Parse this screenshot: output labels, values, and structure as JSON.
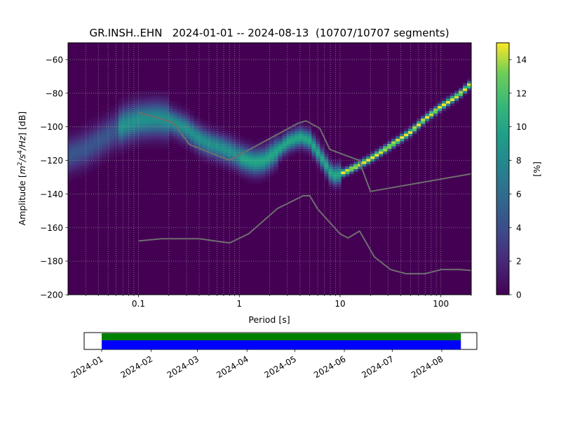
{
  "chart_data": [
    {
      "type": "heatmap",
      "title": "GR.INSH..EHN   2024-01-01 -- 2024-08-13  (10707/10707 segments)",
      "xlabel": "Period [s]",
      "ylabel_prefix": "Amplitude [",
      "ylabel_math": [
        "m",
        "2",
        "/s",
        "4",
        "/Hz"
      ],
      "ylabel_suffix": "] [dB]",
      "x_scale": "log",
      "xlim": [
        0.02,
        200
      ],
      "ylim": [
        -200,
        -50
      ],
      "x_ticks": [
        0.1,
        1,
        10,
        100
      ],
      "x_tick_labels": [
        "0.1",
        "1",
        "10",
        "100"
      ],
      "y_ticks": [
        -200,
        -180,
        -160,
        -140,
        -120,
        -100,
        -80,
        -60
      ],
      "y_tick_labels": [
        "−200",
        "−180",
        "−160",
        "−140",
        "−120",
        "−100",
        "−80",
        "−60"
      ],
      "grid": "dotted",
      "colormap": "viridis",
      "background": "#440154",
      "mode_curve": {
        "period": [
          0.02,
          0.03,
          0.05,
          0.07,
          0.1,
          0.15,
          0.2,
          0.3,
          0.4,
          0.5,
          0.7,
          0.9,
          1.1,
          1.4,
          1.8,
          2.3,
          3,
          4,
          5,
          6,
          7,
          8,
          9,
          10,
          12,
          15,
          20,
          30,
          50,
          70,
          100,
          150,
          200
        ],
        "db": [
          -117,
          -113,
          -105,
          -99,
          -96,
          -95,
          -96,
          -101,
          -107,
          -110,
          -113,
          -116,
          -119,
          -121,
          -120,
          -115,
          -109,
          -106,
          -108,
          -115,
          -121,
          -127,
          -129,
          -128,
          -126,
          -123,
          -119,
          -112,
          -103,
          -95,
          -88,
          -81,
          -74
        ]
      },
      "reference_curves": [
        {
          "period": [
            0.1,
            0.17,
            0.4,
            0.8,
            1.24,
            2.4,
            4.3,
            5.0,
            6.0,
            10.0,
            12.0,
            15.6,
            21.9,
            31.6,
            45.0,
            70.0,
            101.0,
            154.0,
            200.0
          ],
          "db": [
            -168,
            -166.7,
            -166.7,
            -169.2,
            -163.7,
            -148.6,
            -141.1,
            -141.1,
            -149,
            -163.8,
            -166.2,
            -162.1,
            -177.5,
            -185.0,
            -187.5,
            -187.5,
            -185.0,
            -185.0,
            -185.6
          ]
        },
        {
          "period": [
            0.1,
            0.22,
            0.32,
            0.8,
            3.8,
            4.6,
            6.3,
            7.9,
            15.4,
            20.0,
            200.0
          ],
          "db": [
            -91.5,
            -97.4,
            -110.5,
            -120.0,
            -98.0,
            -96.5,
            -101.0,
            -113.5,
            -120.0,
            -138.5,
            -128.0
          ]
        }
      ],
      "colorbar": {
        "label": "[%]",
        "range": [
          0,
          15
        ],
        "ticks": [
          0,
          2,
          4,
          6,
          8,
          10,
          12,
          14
        ],
        "tick_labels": [
          "0",
          "2",
          "4",
          "6",
          "8",
          "10",
          "12",
          "14"
        ]
      }
    },
    {
      "type": "bar",
      "description_role": "data coverage timeline",
      "xlim": [
        "2023-12-21",
        "2024-08-23"
      ],
      "coverage_start": "2024-01-01",
      "coverage_end": "2024-08-13",
      "coverage_colors": [
        "#0000ff",
        "#008000"
      ],
      "x_ticks": [
        "2024-01-01",
        "2024-02-01",
        "2024-03-01",
        "2024-04-01",
        "2024-05-01",
        "2024-06-01",
        "2024-07-01",
        "2024-08-01"
      ],
      "x_tick_labels": [
        "2024-01",
        "2024-02",
        "2024-03",
        "2024-04",
        "2024-05",
        "2024-06",
        "2024-07",
        "2024-08"
      ]
    }
  ]
}
